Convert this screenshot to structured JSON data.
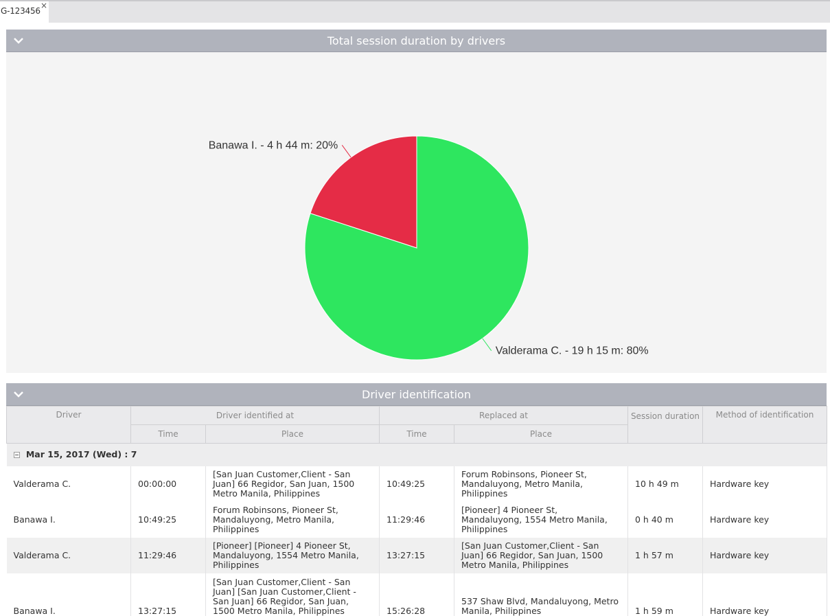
{
  "tab": {
    "label": "G-123456",
    "close": "×"
  },
  "chart_panel": {
    "title": "Total session duration by drivers"
  },
  "chart_data": {
    "type": "pie",
    "title": "Total session duration by drivers",
    "slices": [
      {
        "label": "Valderama C. - 19 h 15 m: 80%",
        "name": "Valderama C.",
        "value": 80,
        "color": "#2ee65f"
      },
      {
        "label": "Banawa I. - 4 h 44 m: 20%",
        "name": "Banawa I.",
        "value": 20,
        "color": "#e52c46"
      }
    ]
  },
  "table_panel": {
    "title": "Driver identification"
  },
  "table": {
    "headers": {
      "driver": "Driver",
      "identified_at": "Driver identified at",
      "replaced_at": "Replaced at",
      "time": "Time",
      "place": "Place",
      "session_duration": "Session duration",
      "method": "Method of identification"
    },
    "group": {
      "label": "Mar 15, 2017 (Wed) : 7"
    },
    "rows": [
      {
        "driver": "Valderama C.",
        "id_time": "00:00:00",
        "id_place": "[San Juan Customer,Client - San Juan] 66 Regidor, San Juan, 1500 Metro Manila, Philippines",
        "rep_time": "10:49:25",
        "rep_place": "Forum Robinsons, Pioneer St, Mandaluyong, Metro Manila, Philippines",
        "duration": "10 h 49 m",
        "method": "Hardware key"
      },
      {
        "driver": "Banawa I.",
        "id_time": "10:49:25",
        "id_place": "Forum Robinsons, Pioneer St, Mandaluyong, Metro Manila, Philippines",
        "rep_time": "11:29:46",
        "rep_place": "[Pioneer] 4 Pioneer St, Mandaluyong, 1554 Metro Manila, Philippines",
        "duration": "0 h 40 m",
        "method": "Hardware key"
      },
      {
        "driver": "Valderama C.",
        "id_time": "11:29:46",
        "id_place": "[Pioneer] [Pioneer] 4 Pioneer St, Mandaluyong, 1554 Metro Manila, Philippines",
        "rep_time": "13:27:15",
        "rep_place": "[San Juan Customer,Client - San Juan] 66 Regidor, San Juan, 1500 Metro Manila, Philippines",
        "duration": "1 h 57 m",
        "method": "Hardware key"
      },
      {
        "driver": "Banawa I.",
        "id_time": "13:27:15",
        "id_place": "[San Juan Customer,Client - San Juan] [San Juan Customer,Client - San Juan] 66 Regidor, San Juan, 1500 Metro Manila, Philippines",
        "rep_time": "15:26:28",
        "rep_place": "537 Shaw Blvd, Mandaluyong, Metro Manila, Philippines",
        "duration": "1 h 59 m",
        "method": "Hardware key"
      }
    ]
  }
}
